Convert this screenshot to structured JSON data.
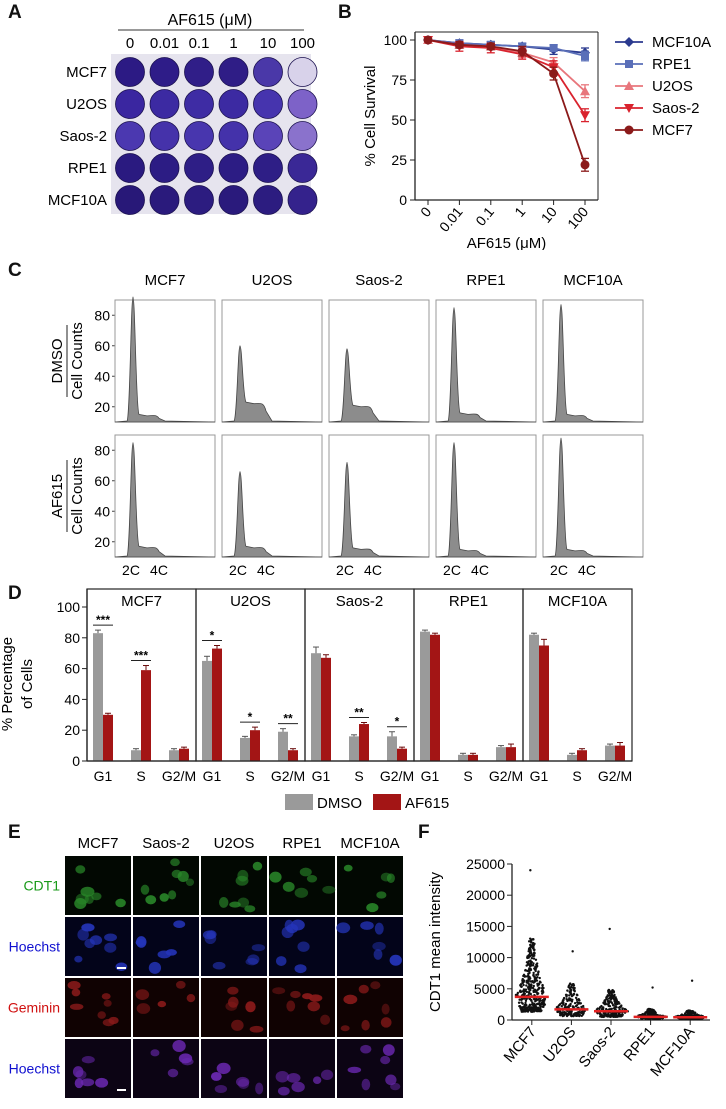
{
  "panel_labels": [
    "A",
    "B",
    "C",
    "D",
    "E",
    "F"
  ],
  "panel_a": {
    "title": "AF615 (μM)",
    "concentrations": [
      "0",
      "0.01",
      "0.1",
      "1",
      "10",
      "100"
    ],
    "cell_lines": [
      "MCF7",
      "U2OS",
      "Saos-2",
      "RPE1",
      "MCF10A"
    ],
    "well_colors": [
      [
        "#2c1a84",
        "#2e1c88",
        "#301e88",
        "#2f1d86",
        "#4a38a8",
        "#d8d2ea"
      ],
      [
        "#3a26a0",
        "#3c2aa2",
        "#3e2ca4",
        "#3c2aa2",
        "#4634ae",
        "#7d62c8"
      ],
      [
        "#4b38b0",
        "#4532aa",
        "#4836ae",
        "#4432aa",
        "#5a44b8",
        "#8a72cc"
      ],
      [
        "#2a1a80",
        "#2c1c84",
        "#2e1e86",
        "#2c1c84",
        "#2e1e86",
        "#3a2896"
      ],
      [
        "#281878",
        "#2a1a7c",
        "#2c1c80",
        "#2a1a7c",
        "#2c1c80",
        "#34228c"
      ]
    ]
  },
  "chart_data": [
    {
      "type": "line",
      "panel": "B",
      "xlabel": "AF615 (μM)",
      "ylabel": "% Cell Survival",
      "categories": [
        "0",
        "0.01",
        "0.1",
        "1",
        "10",
        "100"
      ],
      "ylim": [
        0,
        100
      ],
      "yticks": [
        0,
        25,
        50,
        75,
        100
      ],
      "legend_position": "right",
      "series": [
        {
          "name": "MCF10A",
          "color": "#2b3a8f",
          "marker": "diamond",
          "values": [
            100,
            98,
            97,
            96,
            94,
            92
          ],
          "err": [
            1,
            2,
            2,
            2,
            3,
            3
          ]
        },
        {
          "name": "RPE1",
          "color": "#5a6fb8",
          "marker": "square",
          "values": [
            100,
            98,
            97,
            96,
            95,
            90
          ],
          "err": [
            1,
            2,
            2,
            2,
            2,
            3
          ]
        },
        {
          "name": "U2OS",
          "color": "#e8767c",
          "marker": "triangle-up",
          "values": [
            100,
            97,
            96,
            92,
            86,
            68
          ],
          "err": [
            1,
            2,
            2,
            3,
            3,
            4
          ]
        },
        {
          "name": "Saos-2",
          "color": "#d9232e",
          "marker": "triangle-down",
          "values": [
            100,
            96,
            95,
            91,
            83,
            53
          ],
          "err": [
            1,
            3,
            3,
            3,
            4,
            4
          ]
        },
        {
          "name": "MCF7",
          "color": "#8b1a1a",
          "marker": "circle",
          "values": [
            100,
            97,
            96,
            93,
            79,
            22
          ],
          "err": [
            1,
            2,
            2,
            3,
            4,
            4
          ]
        }
      ]
    },
    {
      "type": "histogram",
      "panel": "C",
      "ylabel": "Cell Counts",
      "row_labels": [
        "DMSO",
        "AF615"
      ],
      "yticks": [
        20,
        40,
        60,
        80
      ],
      "xtick_labels": [
        "2C",
        "4C"
      ],
      "cell_lines": [
        "MCF7",
        "U2OS",
        "Saos-2",
        "RPE1",
        "MCF10A"
      ],
      "peak_heights": {
        "DMSO": [
          92,
          60,
          58,
          85,
          87
        ],
        "AF615": [
          85,
          66,
          72,
          85,
          88
        ]
      },
      "s_phase_shoulder": {
        "DMSO": [
          4,
          12,
          10,
          5,
          4
        ],
        "AF615": [
          6,
          6,
          5,
          4,
          4
        ]
      }
    },
    {
      "type": "bar",
      "panel": "D",
      "ylabel": "% Percentage of Cells",
      "ylim": [
        0,
        100
      ],
      "yticks": [
        0,
        20,
        40,
        60,
        80,
        100
      ],
      "categories": [
        "G1",
        "S",
        "G2/M"
      ],
      "legend": [
        {
          "name": "DMSO",
          "color": "#9a9a9a"
        },
        {
          "name": "AF615",
          "color": "#a31515"
        }
      ],
      "groups": [
        {
          "name": "MCF7",
          "DMSO": [
            83,
            7,
            7
          ],
          "AF615": [
            30,
            59,
            8
          ],
          "dmso_err": [
            2,
            1,
            1
          ],
          "af_err": [
            1,
            3,
            1
          ],
          "sig": [
            "***",
            "***",
            ""
          ]
        },
        {
          "name": "U2OS",
          "DMSO": [
            65,
            15,
            19
          ],
          "AF615": [
            73,
            20,
            7
          ],
          "dmso_err": [
            3,
            1,
            2
          ],
          "af_err": [
            2,
            2,
            1
          ],
          "sig": [
            "*",
            "*",
            "**"
          ]
        },
        {
          "name": "Saos-2",
          "DMSO": [
            70,
            16,
            16
          ],
          "AF615": [
            67,
            24,
            8
          ],
          "dmso_err": [
            4,
            1,
            3
          ],
          "af_err": [
            2,
            1,
            1
          ],
          "sig": [
            "",
            "**",
            "*"
          ]
        },
        {
          "name": "RPE1",
          "DMSO": [
            84,
            4,
            9
          ],
          "AF615": [
            82,
            4,
            9
          ],
          "dmso_err": [
            1,
            1,
            1
          ],
          "af_err": [
            1,
            1,
            2
          ],
          "sig": [
            "",
            "",
            ""
          ]
        },
        {
          "name": "MCF10A",
          "DMSO": [
            82,
            4,
            10
          ],
          "AF615": [
            75,
            7,
            10
          ],
          "dmso_err": [
            1,
            1,
            1
          ],
          "af_err": [
            4,
            1,
            2
          ],
          "sig": [
            "",
            "",
            ""
          ]
        }
      ]
    },
    {
      "type": "scatter",
      "panel": "F",
      "ylabel": "CDT1 mean intensity",
      "ylim": [
        0,
        25000
      ],
      "yticks": [
        0,
        5000,
        10000,
        15000,
        20000,
        25000
      ],
      "categories": [
        "MCF7",
        "U2OS",
        "Saos-2",
        "RPE1",
        "MCF10A"
      ],
      "medians": [
        3700,
        1700,
        1400,
        500,
        450
      ],
      "maxima": [
        24000,
        11000,
        14600,
        5200,
        6300
      ],
      "median_color": "#e02020"
    }
  ],
  "panel_e": {
    "columns": [
      "MCF7",
      "Saos-2",
      "U2OS",
      "RPE1",
      "MCF10A"
    ],
    "rows": [
      {
        "label": "CDT1",
        "color": "#1a9a1a",
        "bg": "#020802",
        "nuc": "#2a8a2a"
      },
      {
        "label": "Hoechst",
        "color": "#1010d0",
        "bg": "#03041a",
        "nuc": "#2434b8"
      },
      {
        "label": "Geminin",
        "color": "#d01010",
        "bg": "#100202",
        "nuc": "#8a1a1a"
      },
      {
        "label": "Hoechst",
        "color": "#1010d0",
        "bg": "#0c0414",
        "nuc": "#6a28b0"
      }
    ]
  }
}
